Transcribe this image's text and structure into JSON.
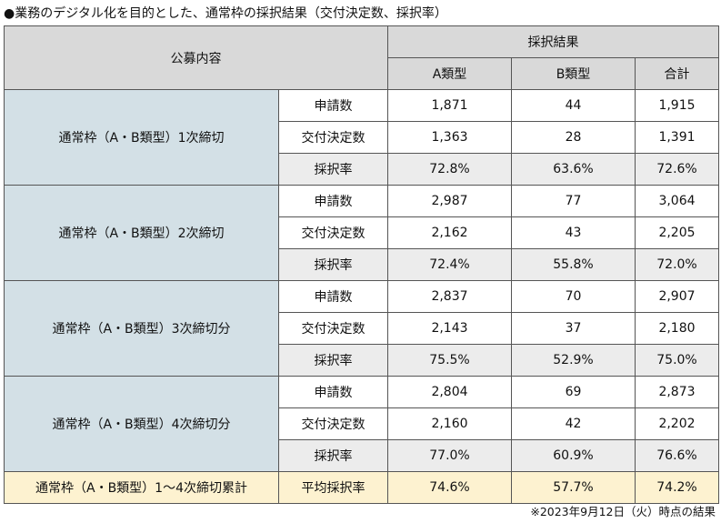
{
  "title": "●業務のデジタル化を目的とした、通常枠の採択結果（交付決定数、採択率）",
  "header": {
    "category": "公募内容",
    "result": "採択結果",
    "col_a": "A類型",
    "col_b": "B類型",
    "col_total": "合計"
  },
  "rounds": [
    {
      "name": "通常枠（A・B類型）1次締切",
      "rows": [
        {
          "label": "申請数",
          "a": "1,871",
          "b": "44",
          "total": "1,915"
        },
        {
          "label": "交付決定数",
          "a": "1,363",
          "b": "28",
          "total": "1,391"
        },
        {
          "label": "採択率",
          "a": "72.8%",
          "b": "63.6%",
          "total": "72.6%"
        }
      ]
    },
    {
      "name": "通常枠（A・B類型）2次締切",
      "rows": [
        {
          "label": "申請数",
          "a": "2,987",
          "b": "77",
          "total": "3,064"
        },
        {
          "label": "交付決定数",
          "a": "2,162",
          "b": "43",
          "total": "2,205"
        },
        {
          "label": "採択率",
          "a": "72.4%",
          "b": "55.8%",
          "total": "72.0%"
        }
      ]
    },
    {
      "name": "通常枠（A・B類型）3次締切分",
      "rows": [
        {
          "label": "申請数",
          "a": "2,837",
          "b": "70",
          "total": "2,907"
        },
        {
          "label": "交付決定数",
          "a": "2,143",
          "b": "37",
          "total": "2,180"
        },
        {
          "label": "採択率",
          "a": "75.5%",
          "b": "52.9%",
          "total": "75.0%"
        }
      ]
    },
    {
      "name": "通常枠（A・B類型）4次締切分",
      "rows": [
        {
          "label": "申請数",
          "a": "2,804",
          "b": "69",
          "total": "2,873"
        },
        {
          "label": "交付決定数",
          "a": "2,160",
          "b": "42",
          "total": "2,202"
        },
        {
          "label": "採択率",
          "a": "77.0%",
          "b": "60.9%",
          "total": "76.6%"
        }
      ]
    }
  ],
  "cumulative": {
    "name": "通常枠（A・B類型）1〜4次締切累計",
    "label": "平均採択率",
    "a": "74.6%",
    "b": "57.7%",
    "total": "74.2%"
  },
  "footnote": "※2023年9月12日（火）時点の結果",
  "colors": {
    "header_bg": "#d9d9d9",
    "group_bg": "#d3e0e6",
    "rate_bg": "#ececec",
    "cumulative_bg": "#fdf2d0"
  }
}
